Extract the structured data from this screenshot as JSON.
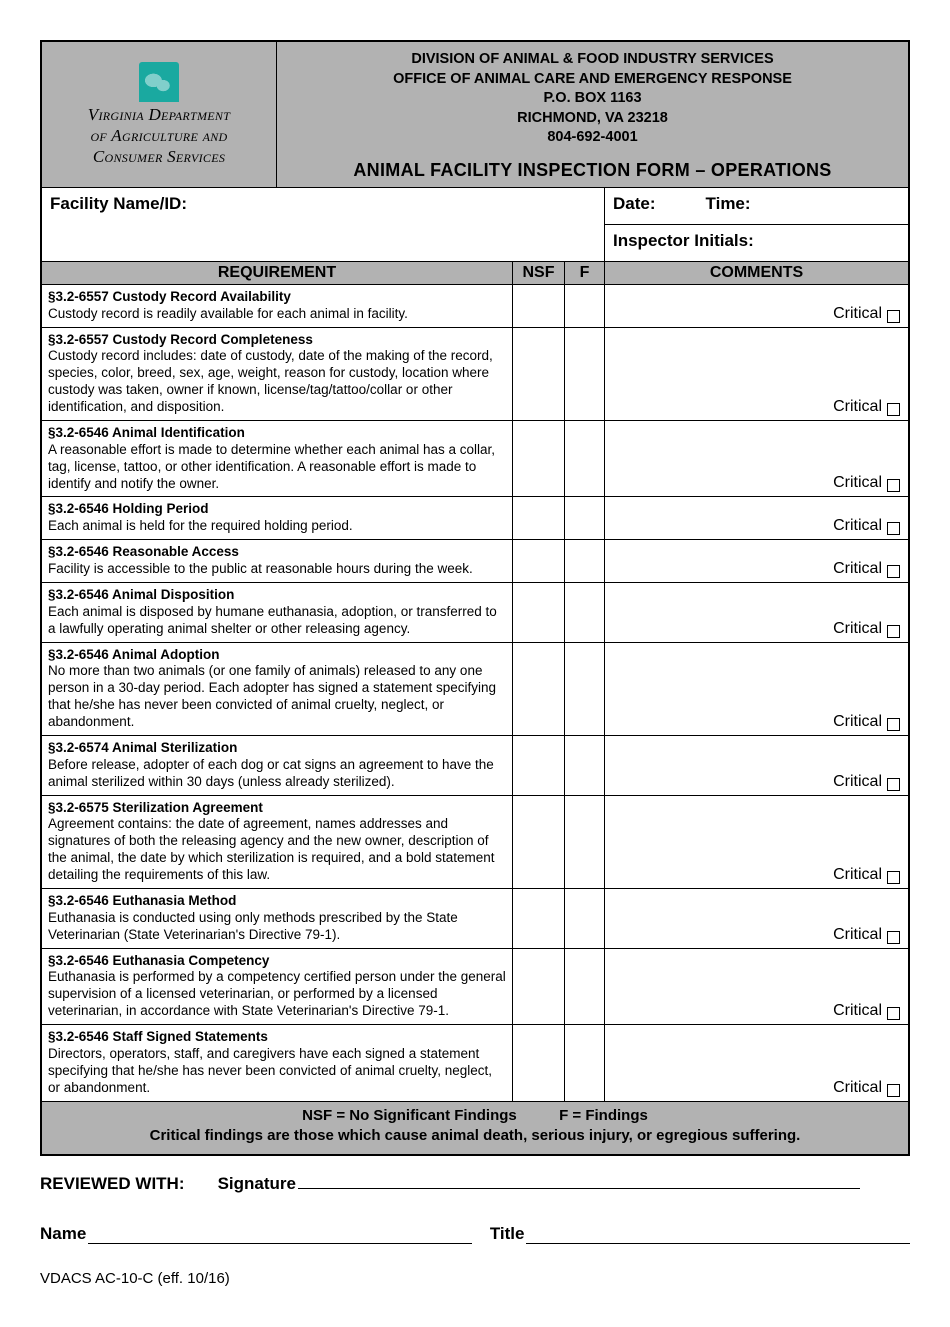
{
  "agency": {
    "name_line1": "Virginia Department",
    "name_line2": "of Agriculture and",
    "name_line3": "Consumer Services",
    "division": "DIVISION OF ANIMAL & FOOD INDUSTRY SERVICES",
    "office": "OFFICE OF ANIMAL CARE AND EMERGENCY RESPONSE",
    "po_box": "P.O. BOX 1163",
    "city_zip": "RICHMOND, VA  23218",
    "phone": "804-692-4001"
  },
  "form": {
    "title": "ANIMAL FACILITY INSPECTION FORM – OPERATIONS",
    "facility_label": "Facility Name/ID:",
    "date_label": "Date:",
    "time_label": "Time:",
    "inspector_label": "Inspector Initials:",
    "col_requirement": "REQUIREMENT",
    "col_nsf": "NSF",
    "col_f": "F",
    "col_comments": "COMMENTS",
    "critical_label": "Critical",
    "legend_nsf": "NSF = No Significant Findings",
    "legend_f": "F = Findings",
    "critical_note": "Critical findings are those which cause animal death, serious injury, or egregious suffering.",
    "reviewed_with": "REVIEWED WITH:",
    "signature_label": "Signature",
    "name_label": "Name",
    "title_label": "Title",
    "form_id": "VDACS AC-10-C (eff. 10/16)"
  },
  "requirements": [
    {
      "code": "§3.2-6557",
      "title": "Custody Record Availability",
      "desc": "Custody record is readily available for each animal in facility."
    },
    {
      "code": "§3.2-6557",
      "title": "Custody Record Completeness",
      "desc": "Custody record includes: date of custody, date of the making of the record, species, color, breed, sex, age, weight, reason for custody, location where custody was taken, owner if known, license/tag/tattoo/collar or other identification, and disposition."
    },
    {
      "code": "§3.2-6546",
      "title": "Animal Identification",
      "desc": "A reasonable effort is made to determine whether each animal has a collar, tag, license, tattoo, or other identification.  A reasonable effort is made to identify and notify the owner."
    },
    {
      "code": "§3.2-6546",
      "title": "Holding Period",
      "desc": "Each animal is held for the required holding period."
    },
    {
      "code": "§3.2-6546",
      "title": "Reasonable Access",
      "desc": "Facility is accessible to the public at reasonable hours during the week."
    },
    {
      "code": "§3.2-6546",
      "title": "Animal Disposition",
      "desc": "Each animal is disposed by humane euthanasia, adoption, or transferred to a lawfully operating animal shelter or other releasing agency."
    },
    {
      "code": "§3.2-6546",
      "title": "Animal Adoption",
      "desc": "No more than two animals (or one family of animals) released to any one person in a 30-day period.  Each adopter has signed a statement specifying that he/she has never been convicted of animal cruelty, neglect, or abandonment."
    },
    {
      "code": "§3.2-6574",
      "title": "Animal Sterilization",
      "desc": "Before release, adopter of each dog or cat signs an agreement to have the animal sterilized within 30 days (unless already sterilized)."
    },
    {
      "code": "§3.2-6575",
      "title": "Sterilization Agreement",
      "desc": "Agreement contains: the date of agreement, names addresses and signatures of both the releasing agency and the new owner, description of the animal, the date by which sterilization is required, and a bold statement detailing the requirements of this law."
    },
    {
      "code": "§3.2-6546",
      "title": "Euthanasia Method",
      "desc": "Euthanasia is conducted using only methods prescribed by the State Veterinarian (State Veterinarian's Directive 79-1)."
    },
    {
      "code": "§3.2-6546",
      "title": "Euthanasia Competency",
      "desc": "Euthanasia is performed by a competency certified person under the general supervision of a licensed veterinarian, or performed by a licensed veterinarian, in accordance with State Veterinarian's Directive 79-1."
    },
    {
      "code": "§3.2-6546",
      "title": "Staff Signed Statements",
      "desc": "Directors, operators, staff, and caregivers have each signed a statement specifying that he/she has never been convicted of animal cruelty, neglect, or abandonment."
    }
  ],
  "colors": {
    "band": "#b2b2b2",
    "accent": "#1aa9a0"
  }
}
